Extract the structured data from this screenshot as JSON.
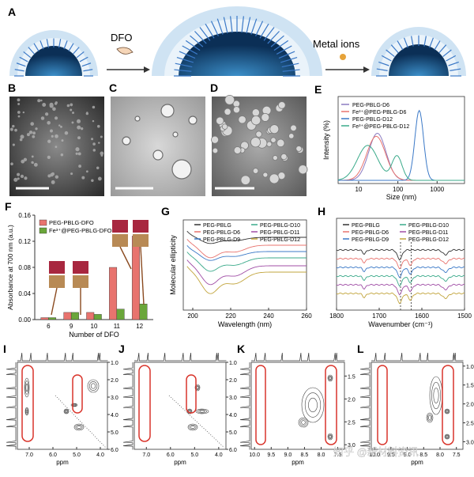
{
  "panels": {
    "A": "A",
    "B": "B",
    "C": "C",
    "D": "D",
    "E": "E",
    "F": "F",
    "G": "G",
    "H": "H",
    "I": "I",
    "J": "J",
    "K": "K",
    "L": "L"
  },
  "schematic": {
    "dfo": "DFO",
    "metal": "Metal ions"
  },
  "watermark": "知乎 @新材料资讯",
  "colors": {
    "red": "#e8736e",
    "green": "#6aa63a",
    "blue": "#3b79c7",
    "purple": "#8b7bc1",
    "teal": "#3aaa8a",
    "pink": "#d882c2",
    "olive": "#c2a53d",
    "magenta": "#a04ea6",
    "ellipse": "#d9342b"
  },
  "chart_data": [
    {
      "type": "line",
      "panel": "E",
      "xlabel": "Size (nm)",
      "ylabel": "Intensity (%)",
      "xscale": "log",
      "xticks": [
        "10",
        "100",
        "1000"
      ],
      "legend": "top-left",
      "series": [
        {
          "name": "PEG-PBLG-D6",
          "color": "#8b7bc1",
          "peak_nm": 30
        },
        {
          "name": "Fe³⁺@PEG-PBLG-D6",
          "color": "#e8736e",
          "peak_nm": 28
        },
        {
          "name": "PEG-PBLG-D12",
          "color": "#3b79c7",
          "peak_nm": 350
        },
        {
          "name": "Fe³⁺@PEG-PBLG-D12",
          "color": "#3aaa8a",
          "peak_nm": 17
        }
      ]
    },
    {
      "type": "bar",
      "panel": "F",
      "xlabel": "Number of DFO",
      "ylabel": "Absorbance at 700 nm (a.u.)",
      "categories": [
        "6",
        "9",
        "10",
        "11",
        "12"
      ],
      "ylim": [
        0,
        0.16
      ],
      "yticks": [
        "0.00",
        "0.04",
        "0.08",
        "0.12",
        "0.16"
      ],
      "legend": "top-left",
      "series": [
        {
          "name": "PEG-PBLG-DFO",
          "color": "#e8736e",
          "values": [
            0.003,
            0.011,
            0.011,
            0.08,
            0.128
          ]
        },
        {
          "name": "Fe³⁺@PEG-PBLG-DFO",
          "color": "#6aa63a",
          "values": [
            0.003,
            0.011,
            0.008,
            0.016,
            0.024
          ]
        }
      ]
    },
    {
      "type": "line",
      "panel": "G",
      "xlabel": "Wavelength (nm)",
      "ylabel": "Molecular ellipticity",
      "xlim": [
        195,
        260
      ],
      "xticks": [
        "200",
        "220",
        "240",
        "260"
      ],
      "legend": "top",
      "series": [
        {
          "name": "PEG-PBLG",
          "color": "#333333"
        },
        {
          "name": "PEG-PBLG-D6",
          "color": "#e8736e"
        },
        {
          "name": "PEG-PBLG-D9",
          "color": "#3b79c7"
        },
        {
          "name": "PEG-PBLG-D10",
          "color": "#3aaa8a"
        },
        {
          "name": "PEG-PBLG-D11",
          "color": "#a04ea6"
        },
        {
          "name": "PEG-PBLG-D12",
          "color": "#c2a53d"
        }
      ]
    },
    {
      "type": "line",
      "panel": "H",
      "xlabel": "Wavenumber (cm⁻¹)",
      "xlim": [
        1800,
        1500
      ],
      "xticks": [
        "1800",
        "1700",
        "1600",
        "1500"
      ],
      "legend": "top",
      "series": [
        {
          "name": "PEG-PBLG",
          "color": "#333333"
        },
        {
          "name": "PEG-PBLG-D6",
          "color": "#e8736e"
        },
        {
          "name": "PEG-PBLG-D9",
          "color": "#3b79c7"
        },
        {
          "name": "PEG-PBLG-D10",
          "color": "#3aaa8a"
        },
        {
          "name": "PEG-PBLG-D11",
          "color": "#a04ea6"
        },
        {
          "name": "PEG-PBLG-D12",
          "color": "#c2a53d"
        }
      ]
    },
    {
      "type": "heatmap",
      "panel": "I",
      "xlabel": "ppm",
      "xticks": [
        "7.0",
        "6.0",
        "5.0",
        "4.0"
      ],
      "yticks": [
        "1.0",
        "2.0",
        "3.0",
        "4.0",
        "5.0",
        "6.0"
      ]
    },
    {
      "type": "heatmap",
      "panel": "J",
      "xlabel": "ppm",
      "xticks": [
        "7.0",
        "6.0",
        "5.0",
        "4.0"
      ],
      "yticks": [
        "1.0",
        "2.0",
        "3.0",
        "4.0",
        "5.0",
        "6.0"
      ]
    },
    {
      "type": "heatmap",
      "panel": "K",
      "xlabel": "ppm",
      "xticks": [
        "10.0",
        "9.5",
        "9.0",
        "8.5",
        "8.0",
        "7.5"
      ],
      "yticks": [
        "1.5",
        "2.0",
        "2.5",
        "3.0"
      ]
    },
    {
      "type": "heatmap",
      "panel": "L",
      "xlabel": "ppm",
      "xticks": [
        "10.0",
        "9.5",
        "9.0",
        "8.5",
        "8.0",
        "7.5"
      ],
      "yticks": [
        "1.0",
        "1.5",
        "2.0",
        "2.5",
        "3.0"
      ]
    }
  ]
}
